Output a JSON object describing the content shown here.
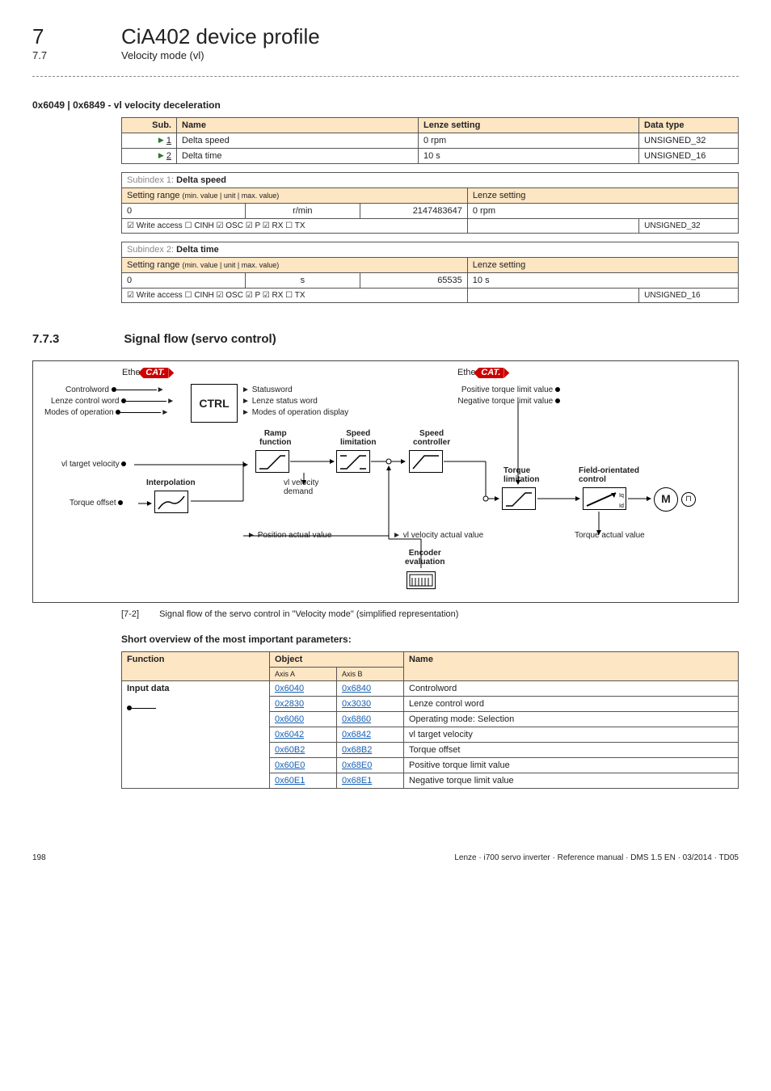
{
  "header": {
    "chapterNum": "7",
    "chapterTitle": "CiA402 device profile",
    "subNum": "7.7",
    "subTitle": "Velocity mode (vl)"
  },
  "objTitle": "0x6049 | 0x6849 - vl velocity deceleration",
  "mainTable": {
    "headers": {
      "sub": "Sub.",
      "name": "Name",
      "lenze": "Lenze setting",
      "dtype": "Data type"
    },
    "rows": [
      {
        "sub": "1",
        "name": "Delta speed",
        "lenze": "0 rpm",
        "dtype": "UNSIGNED_32"
      },
      {
        "sub": "2",
        "name": "Delta time",
        "lenze": "10 s",
        "dtype": "UNSIGNED_16"
      }
    ]
  },
  "subidx": [
    {
      "title": "Subindex 1:",
      "name": "Delta speed",
      "rangeLabel": "Setting range",
      "rangeNote": "(min. value | unit | max. value)",
      "lenzeLabel": "Lenze setting",
      "min": "0",
      "unit": "r/min",
      "max": "2147483647",
      "lenze": "0 rpm",
      "flags": "☑ Write access   ☐ CINH   ☑ OSC   ☑ P   ☑ RX   ☐ TX",
      "dtype": "UNSIGNED_32"
    },
    {
      "title": "Subindex 2:",
      "name": "Delta time",
      "rangeLabel": "Setting range",
      "rangeNote": "(min. value | unit | max. value)",
      "lenzeLabel": "Lenze setting",
      "min": "0",
      "unit": "s",
      "max": "65535",
      "lenze": "10 s",
      "flags": "☑ Write access   ☐ CINH   ☑ OSC   ☑ P   ☑ RX   ☐ TX",
      "dtype": "UNSIGNED_16"
    }
  ],
  "sec773": {
    "num": "7.7.3",
    "title": "Signal flow (servo control)"
  },
  "diagram": {
    "ctrl": "CTRL",
    "inLeft": [
      "Controlword",
      "Lenze control word",
      "Modes of operation"
    ],
    "outCtrl": [
      "Statusword",
      "Lenze status word",
      "Modes of operation display"
    ],
    "inRight": [
      "Positive torque limit value",
      "Negative torque limit value"
    ],
    "labels": {
      "ramp": "Ramp\nfunction",
      "spdlim": "Speed\nlimitation",
      "spdctl": "Speed\ncontroller",
      "torlim": "Torque\nlimitation",
      "foc": "Field-orientated\ncontrol",
      "vltgt": "vl target velocity",
      "interp": "Interpolation",
      "toff": "Torque offset",
      "vldem": "vl velocity\ndemand",
      "posact": "Position actual value",
      "vlact": "vl velocity actual value",
      "torqact": "Torque actual value",
      "encev": "Encoder\nevaluation",
      "M": "M"
    }
  },
  "caption": {
    "num": "[7-2]",
    "text": "Signal flow of the servo control in \"Velocity mode\" (simplified representation)"
  },
  "shortOvw": "Short overview of the most important parameters:",
  "funcTable": {
    "headers": {
      "func": "Function",
      "obj": "Object",
      "axA": "Axis A",
      "axB": "Axis B",
      "name": "Name"
    },
    "group": "Input data",
    "rows": [
      {
        "a": "0x6040",
        "b": "0x6840",
        "n": "Controlword"
      },
      {
        "a": "0x2830",
        "b": "0x3030",
        "n": "Lenze control word"
      },
      {
        "a": "0x6060",
        "b": "0x6860",
        "n": "Operating mode: Selection"
      },
      {
        "a": "0x6042",
        "b": "0x6842",
        "n": "vl target velocity"
      },
      {
        "a": "0x60B2",
        "b": "0x68B2",
        "n": "Torque offset"
      },
      {
        "a": "0x60E0",
        "b": "0x68E0",
        "n": "Positive torque limit value"
      },
      {
        "a": "0x60E1",
        "b": "0x68E1",
        "n": "Negative torque limit value"
      }
    ]
  },
  "footer": {
    "page": "198",
    "text": "Lenze · i700 servo inverter · Reference manual · DMS 1.5 EN · 03/2014 · TD05"
  }
}
